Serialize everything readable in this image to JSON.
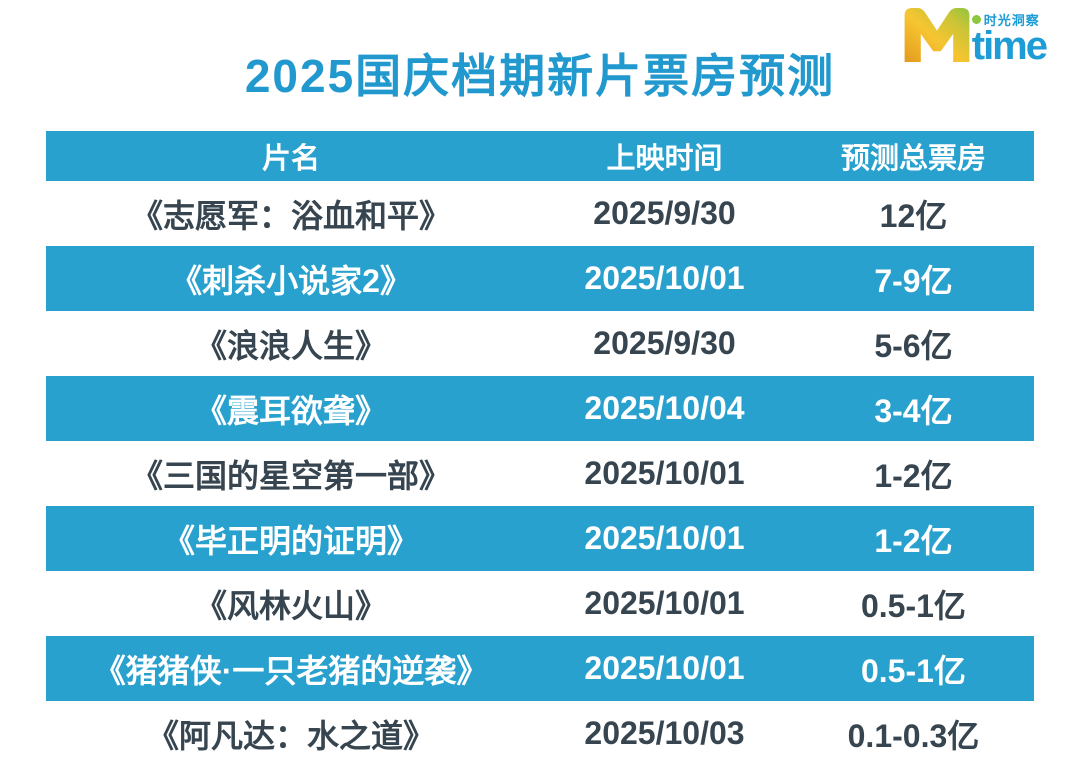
{
  "logo": {
    "brand_m": "M",
    "brand_text": "time",
    "tagline": "时光洞察"
  },
  "colors": {
    "accent_blue": "#29A1CE",
    "title_blue": "#2199CE",
    "dark_text": "#36454F",
    "row_white": "#FFFFFF",
    "logo_gold": "#E39A1E",
    "logo_yellow": "#F7C531",
    "logo_green": "#8DC63F",
    "logo_blue": "#1E9CD6"
  },
  "chart_data": {
    "type": "table",
    "title": "2025国庆档期新片票房预测",
    "columns": [
      "片名",
      "上映时间",
      "预测总票房"
    ],
    "rows": [
      [
        "《志愿军：浴血和平》",
        "2025/9/30",
        "12亿"
      ],
      [
        "《刺杀小说家2》",
        "2025/10/01",
        "7-9亿"
      ],
      [
        "《浪浪人生》",
        "2025/9/30",
        "5-6亿"
      ],
      [
        "《震耳欲聋》",
        "2025/10/04",
        "3-4亿"
      ],
      [
        "《三国的星空第一部》",
        "2025/10/01",
        "1-2亿"
      ],
      [
        "《毕正明的证明》",
        "2025/10/01",
        "1-2亿"
      ],
      [
        "《风林火山》",
        "2025/10/01",
        "0.5-1亿"
      ],
      [
        "《猪猪侠·一只老猪的逆袭》",
        "2025/10/01",
        "0.5-1亿"
      ],
      [
        "《阿凡达：水之道》",
        "2025/10/03",
        "0.1-0.3亿"
      ]
    ],
    "layout": {
      "row_striping": "alternate white / blue starting white",
      "header_background": "#29A1CE",
      "alignment": "center"
    }
  }
}
